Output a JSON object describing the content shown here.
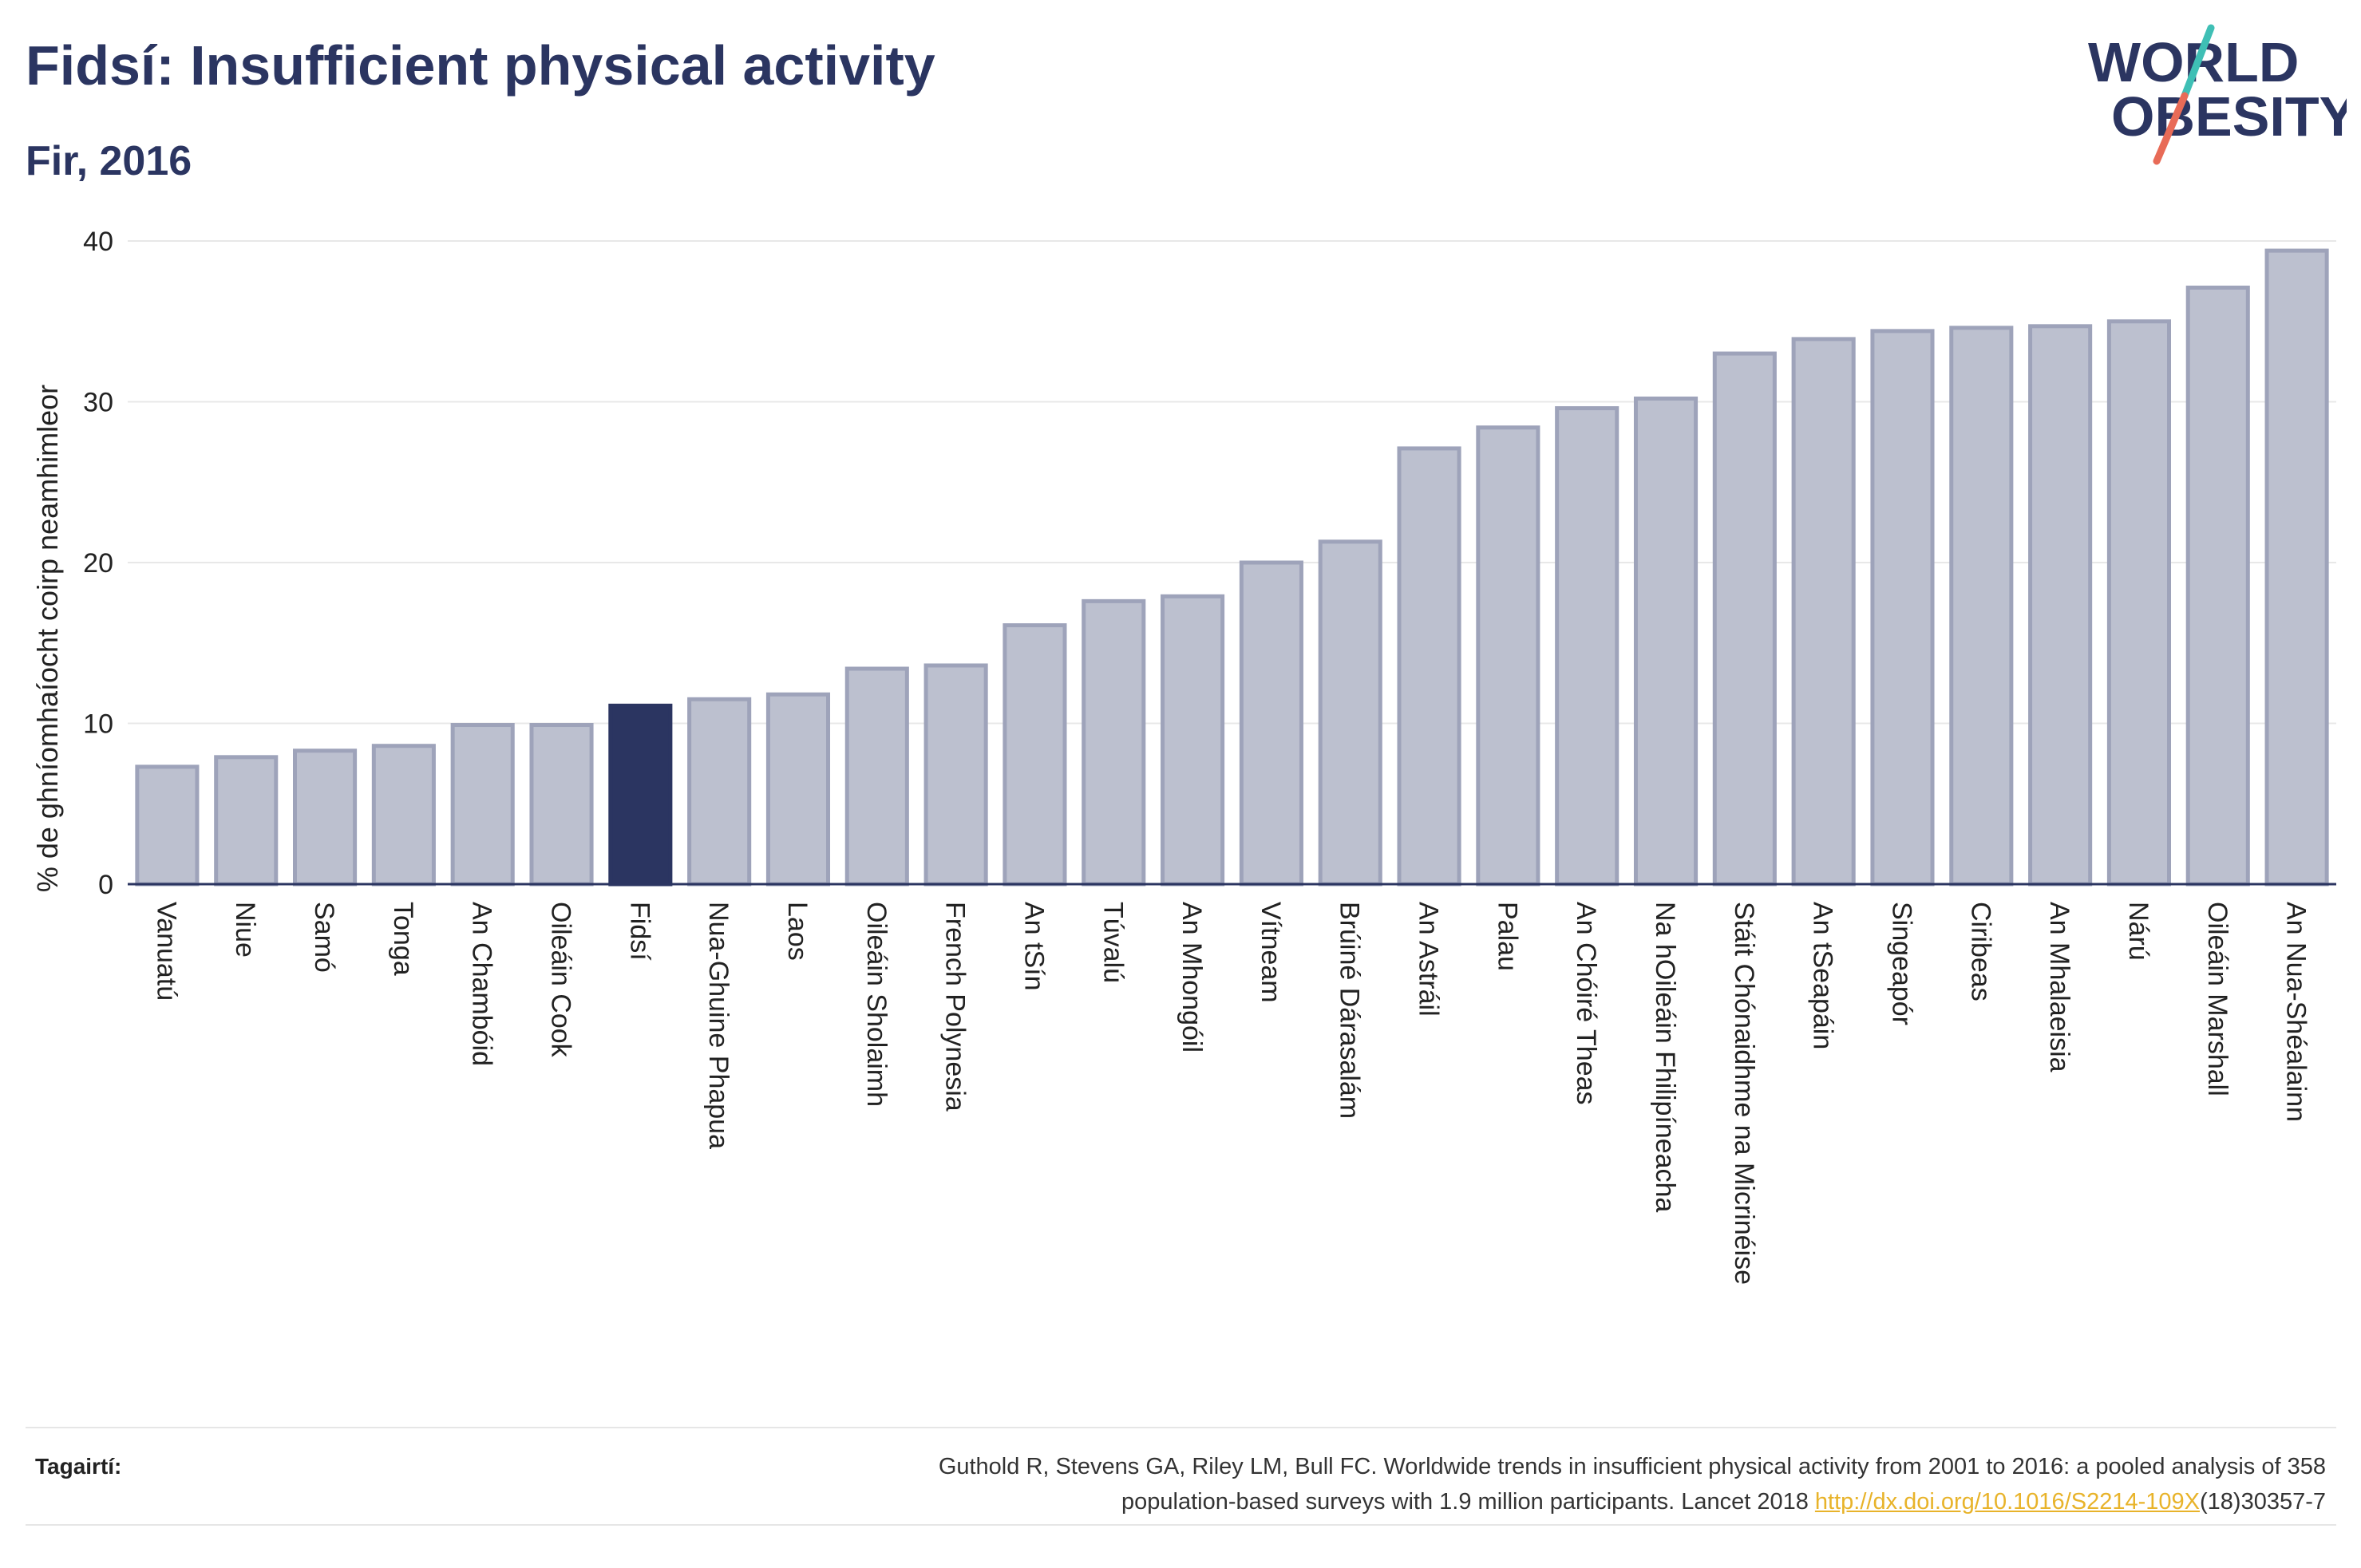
{
  "header": {
    "title": "Fidsí: Insufficient physical activity",
    "subtitle": "Fir, 2016"
  },
  "logo": {
    "line1": "WORLD",
    "line2": "OBESITY",
    "text_color": "#2b3561",
    "slash_colors": [
      "#3fbfb5",
      "#e86b57"
    ]
  },
  "colors": {
    "bar_default": "#bcc0cf",
    "bar_border": "#9ea3ba",
    "bar_highlight": "#2b3561",
    "grid": "#e8e8e8",
    "axis": "#2b3561",
    "text": "#222222"
  },
  "chart_data": {
    "type": "bar",
    "ylabel": "% de ghníomhaíocht coirp neamhimleor",
    "ylim": [
      0,
      40
    ],
    "yticks": [
      0,
      10,
      20,
      30,
      40
    ],
    "grid": true,
    "highlight": "Fidsí",
    "categories": [
      "Vanuatú",
      "Niue",
      "Samó",
      "Tonga",
      "An Chambóid",
      "Oileáin Cook",
      "Fidsí",
      "Nua-Ghuine Phapua",
      "Laos",
      "Oileáin Sholaimh",
      "French Polynesia",
      "An tSín",
      "Túvalú",
      "An Mhongóil",
      "Vítneam",
      "Brúiné Dárasalám",
      "An Astráil",
      "Palau",
      "An Chóiré Theas",
      "Na hOileáin Fhilipíneacha",
      "Stáit Chónaidhme na Micrinéise",
      "An tSeapáin",
      "Singeapór",
      "Ciribeas",
      "An Mhalaeisia",
      "Nárú",
      "Oileáin Marshall",
      "An Nua-Shéalainn"
    ],
    "values": [
      7.3,
      7.9,
      8.3,
      8.6,
      9.9,
      9.9,
      11.1,
      11.5,
      11.8,
      13.4,
      13.6,
      16.1,
      17.6,
      17.9,
      20.0,
      21.3,
      27.1,
      28.4,
      29.6,
      30.2,
      33.0,
      33.9,
      34.4,
      34.6,
      34.7,
      35.0,
      37.1,
      39.4
    ]
  },
  "footer": {
    "ref_label": "Tagairtí:",
    "ref_text_1": "Guthold R, Stevens GA, Riley LM, Bull FC. Worldwide trends in insufficient physical activity from 2001 to 2016: a pooled analysis of 358",
    "ref_text_2": "population-based surveys with 1.9 million participants. Lancet 2018 ",
    "ref_link": "http://dx.doi.org/10.1016/S2214-109X",
    "ref_text_3": "(18)30357-7"
  }
}
